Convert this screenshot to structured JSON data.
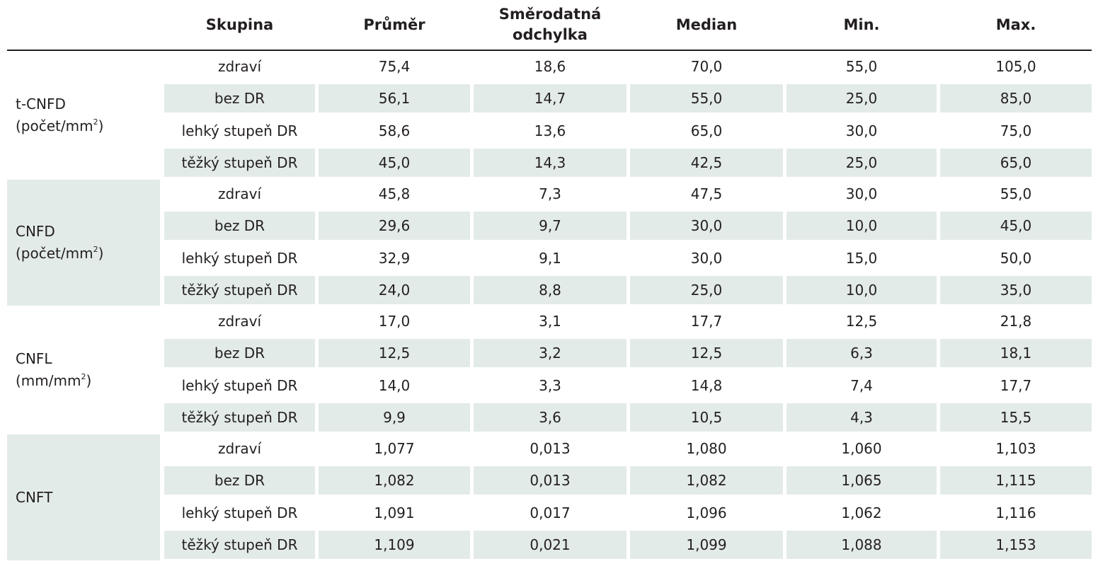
{
  "table": {
    "headers": {
      "skupina": "Skupina",
      "prumer": "Průměr",
      "smerodatna_line1": "Směrodatná",
      "smerodatna_line2": "odchylka",
      "median": "Median",
      "min": "Min.",
      "max": "Max."
    },
    "groups": [
      {
        "name": "t-CNFD",
        "unit": "(počet/mm",
        "unit_sup": "2",
        "unit_close": ")",
        "rows": [
          {
            "skupina": "zdraví",
            "prumer": "75,4",
            "sd": "18,6",
            "median": "70,0",
            "min": "55,0",
            "max": "105,0"
          },
          {
            "skupina": "bez DR",
            "prumer": "56,1",
            "sd": "14,7",
            "median": "55,0",
            "min": "25,0",
            "max": "85,0"
          },
          {
            "skupina": "lehký stupeň DR",
            "prumer": "58,6",
            "sd": "13,6",
            "median": "65,0",
            "min": "30,0",
            "max": "75,0"
          },
          {
            "skupina": "těžký stupeň DR",
            "prumer": "45,0",
            "sd": "14,3",
            "median": "42,5",
            "min": "25,0",
            "max": "65,0"
          }
        ]
      },
      {
        "name": "CNFD",
        "unit": "(počet/mm",
        "unit_sup": "2",
        "unit_close": ")",
        "rows": [
          {
            "skupina": "zdraví",
            "prumer": "45,8",
            "sd": "7,3",
            "median": "47,5",
            "min": "30,0",
            "max": "55,0"
          },
          {
            "skupina": "bez DR",
            "prumer": "29,6",
            "sd": "9,7",
            "median": "30,0",
            "min": "10,0",
            "max": "45,0"
          },
          {
            "skupina": "lehký stupeň DR",
            "prumer": "32,9",
            "sd": "9,1",
            "median": "30,0",
            "min": "15,0",
            "max": "50,0"
          },
          {
            "skupina": "těžký stupeň DR",
            "prumer": "24,0",
            "sd": "8,8",
            "median": "25,0",
            "min": "10,0",
            "max": "35,0"
          }
        ]
      },
      {
        "name": "CNFL",
        "unit": "(mm/mm",
        "unit_sup": "2",
        "unit_close": ")",
        "rows": [
          {
            "skupina": "zdraví",
            "prumer": "17,0",
            "sd": "3,1",
            "median": "17,7",
            "min": "12,5",
            "max": "21,8"
          },
          {
            "skupina": "bez DR",
            "prumer": "12,5",
            "sd": "3,2",
            "median": "12,5",
            "min": "6,3",
            "max": "18,1"
          },
          {
            "skupina": "lehký stupeň DR",
            "prumer": "14,0",
            "sd": "3,3",
            "median": "14,8",
            "min": "7,4",
            "max": "17,7"
          },
          {
            "skupina": "těžký stupeň DR",
            "prumer": "9,9",
            "sd": "3,6",
            "median": "10,5",
            "min": "4,3",
            "max": "15,5"
          }
        ]
      },
      {
        "name": "CNFT",
        "unit": "",
        "unit_sup": "",
        "unit_close": "",
        "rows": [
          {
            "skupina": "zdraví",
            "prumer": "1,077",
            "sd": "0,013",
            "median": "1,080",
            "min": "1,060",
            "max": "1,103"
          },
          {
            "skupina": "bez DR",
            "prumer": "1,082",
            "sd": "0,013",
            "median": "1,082",
            "min": "1,065",
            "max": "1,115"
          },
          {
            "skupina": "lehký stupeň DR",
            "prumer": "1,091",
            "sd": "0,017",
            "median": "1,096",
            "min": "1,062",
            "max": "1,116"
          },
          {
            "skupina": "těžký stupeň DR",
            "prumer": "1,109",
            "sd": "0,021",
            "median": "1,099",
            "min": "1,088",
            "max": "1,153"
          }
        ]
      }
    ]
  }
}
